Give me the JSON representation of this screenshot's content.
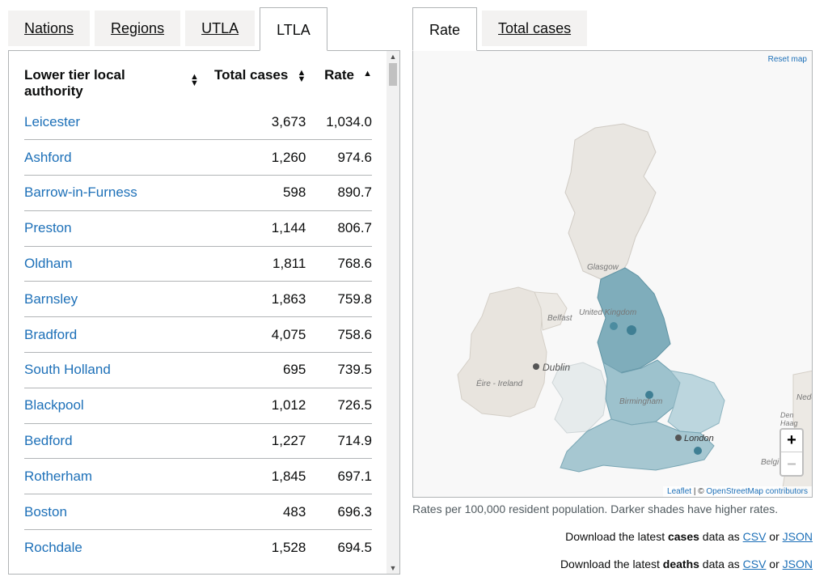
{
  "left_tabs": [
    "Nations",
    "Regions",
    "UTLA",
    "LTLA"
  ],
  "left_active_tab": 3,
  "right_tabs": [
    "Rate",
    "Total cases"
  ],
  "right_active_tab": 0,
  "table": {
    "headers": [
      "Lower tier local authority",
      "Total cases",
      "Rate"
    ],
    "rows": [
      {
        "name": "Leicester",
        "cases": "3,673",
        "rate": "1,034.0"
      },
      {
        "name": "Ashford",
        "cases": "1,260",
        "rate": "974.6"
      },
      {
        "name": "Barrow-in-Furness",
        "cases": "598",
        "rate": "890.7"
      },
      {
        "name": "Preston",
        "cases": "1,144",
        "rate": "806.7"
      },
      {
        "name": "Oldham",
        "cases": "1,811",
        "rate": "768.6"
      },
      {
        "name": "Barnsley",
        "cases": "1,863",
        "rate": "759.8"
      },
      {
        "name": "Bradford",
        "cases": "4,075",
        "rate": "758.6"
      },
      {
        "name": "South Holland",
        "cases": "695",
        "rate": "739.5"
      },
      {
        "name": "Blackpool",
        "cases": "1,012",
        "rate": "726.5"
      },
      {
        "name": "Bedford",
        "cases": "1,227",
        "rate": "714.9"
      },
      {
        "name": "Rotherham",
        "cases": "1,845",
        "rate": "697.1"
      },
      {
        "name": "Boston",
        "cases": "483",
        "rate": "696.3"
      },
      {
        "name": "Rochdale",
        "cases": "1,528",
        "rate": "694.5"
      }
    ]
  },
  "map": {
    "reset_label": "Reset map",
    "zoom_in": "+",
    "zoom_out": "–",
    "attribution_leaflet": "Leaflet",
    "attribution_sep": " | © ",
    "attribution_osm": "OpenStreetMap contributors",
    "labels": [
      "Glasgow",
      "United Kingdom",
      "Belfast",
      "Dublin",
      "Éire - Ireland",
      "Birmingham",
      "London",
      "Nede",
      "Den Haag",
      "Belgi"
    ]
  },
  "caption": "Rates per 100,000 resident population. Darker shades have higher rates.",
  "downloads": [
    {
      "prefix": "Download the latest ",
      "bold": "cases",
      "middle": " data as ",
      "link1": "CSV",
      "or": " or ",
      "link2": "JSON"
    },
    {
      "prefix": "Download the latest ",
      "bold": "deaths",
      "middle": " data as ",
      "link1": "CSV",
      "or": " or ",
      "link2": "JSON"
    }
  ],
  "colors": {
    "link": "#1d70b8",
    "map_dark": "#4e8fa3",
    "map_mid": "#8cb7c4",
    "map_light": "#c9dde3",
    "land": "#e8e4de"
  }
}
